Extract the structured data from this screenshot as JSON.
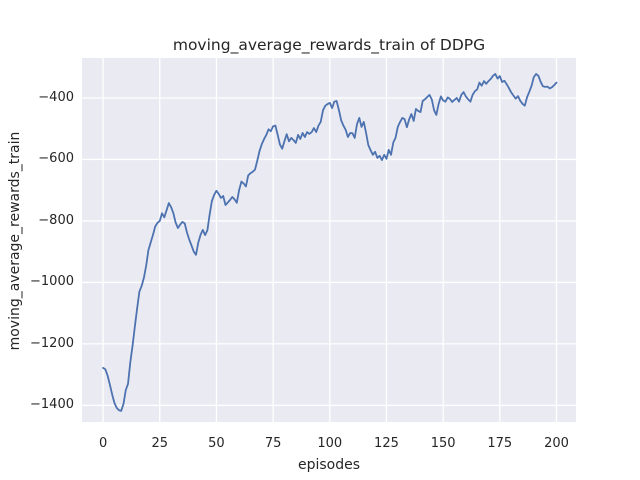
{
  "figure": {
    "title": "moving_average_rewards_train of DDPG",
    "xlabel": "episodes",
    "ylabel": "moving_average_rewards_train"
  },
  "chart_data": {
    "type": "line",
    "title": "moving_average_rewards_train of DDPG",
    "xlabel": "episodes",
    "ylabel": "moving_average_rewards_train",
    "grid": true,
    "legend": false,
    "plot_background": "#eaeaf2",
    "grid_color": "#ffffff",
    "text_color": "#262626",
    "xlim": [
      -9.3,
      208.6
    ],
    "ylim": [
      -1454,
      -270
    ],
    "x_ticks": [
      0,
      25,
      50,
      75,
      100,
      125,
      150,
      175,
      200
    ],
    "x_tick_labels": [
      "0",
      "25",
      "50",
      "75",
      "100",
      "125",
      "150",
      "175",
      "200"
    ],
    "y_ticks": [
      -400,
      -600,
      -800,
      -1000,
      -1200,
      -1400
    ],
    "y_tick_labels": [
      "−400",
      "−600",
      "−800",
      "−1000",
      "−1200",
      "−1400"
    ],
    "series": [
      {
        "name": "moving_average_rewards_train",
        "color": "#4c72b0",
        "line_width": 1.8,
        "x_start": 0,
        "x_step": 1,
        "values": [
          -1278,
          -1283,
          -1303,
          -1333,
          -1365,
          -1392,
          -1408,
          -1416,
          -1418,
          -1395,
          -1350,
          -1330,
          -1260,
          -1205,
          -1145,
          -1085,
          -1030,
          -1012,
          -985,
          -945,
          -895,
          -870,
          -845,
          -818,
          -806,
          -800,
          -775,
          -788,
          -765,
          -742,
          -755,
          -775,
          -805,
          -823,
          -812,
          -803,
          -808,
          -838,
          -860,
          -880,
          -900,
          -910,
          -870,
          -845,
          -829,
          -846,
          -830,
          -780,
          -735,
          -715,
          -702,
          -712,
          -725,
          -719,
          -748,
          -740,
          -732,
          -722,
          -730,
          -741,
          -700,
          -672,
          -678,
          -688,
          -652,
          -645,
          -640,
          -633,
          -605,
          -573,
          -550,
          -534,
          -520,
          -502,
          -508,
          -492,
          -490,
          -520,
          -551,
          -565,
          -540,
          -518,
          -541,
          -530,
          -537,
          -546,
          -520,
          -533,
          -514,
          -527,
          -511,
          -517,
          -511,
          -498,
          -511,
          -490,
          -478,
          -440,
          -425,
          -420,
          -416,
          -433,
          -412,
          -410,
          -439,
          -472,
          -490,
          -504,
          -527,
          -514,
          -515,
          -530,
          -485,
          -465,
          -494,
          -478,
          -514,
          -553,
          -570,
          -585,
          -575,
          -595,
          -588,
          -602,
          -585,
          -598,
          -569,
          -585,
          -545,
          -530,
          -494,
          -478,
          -465,
          -469,
          -495,
          -470,
          -452,
          -475,
          -436,
          -442,
          -446,
          -410,
          -404,
          -397,
          -390,
          -405,
          -440,
          -455,
          -420,
          -395,
          -408,
          -412,
          -398,
          -403,
          -413,
          -406,
          -400,
          -412,
          -390,
          -381,
          -395,
          -404,
          -412,
          -390,
          -378,
          -372,
          -350,
          -360,
          -345,
          -354,
          -345,
          -338,
          -328,
          -322,
          -337,
          -329,
          -348,
          -344,
          -355,
          -368,
          -382,
          -392,
          -402,
          -394,
          -409,
          -419,
          -425,
          -398,
          -380,
          -360,
          -332,
          -322,
          -328,
          -347,
          -362,
          -364,
          -363,
          -369,
          -365,
          -358,
          -350
        ]
      }
    ]
  }
}
